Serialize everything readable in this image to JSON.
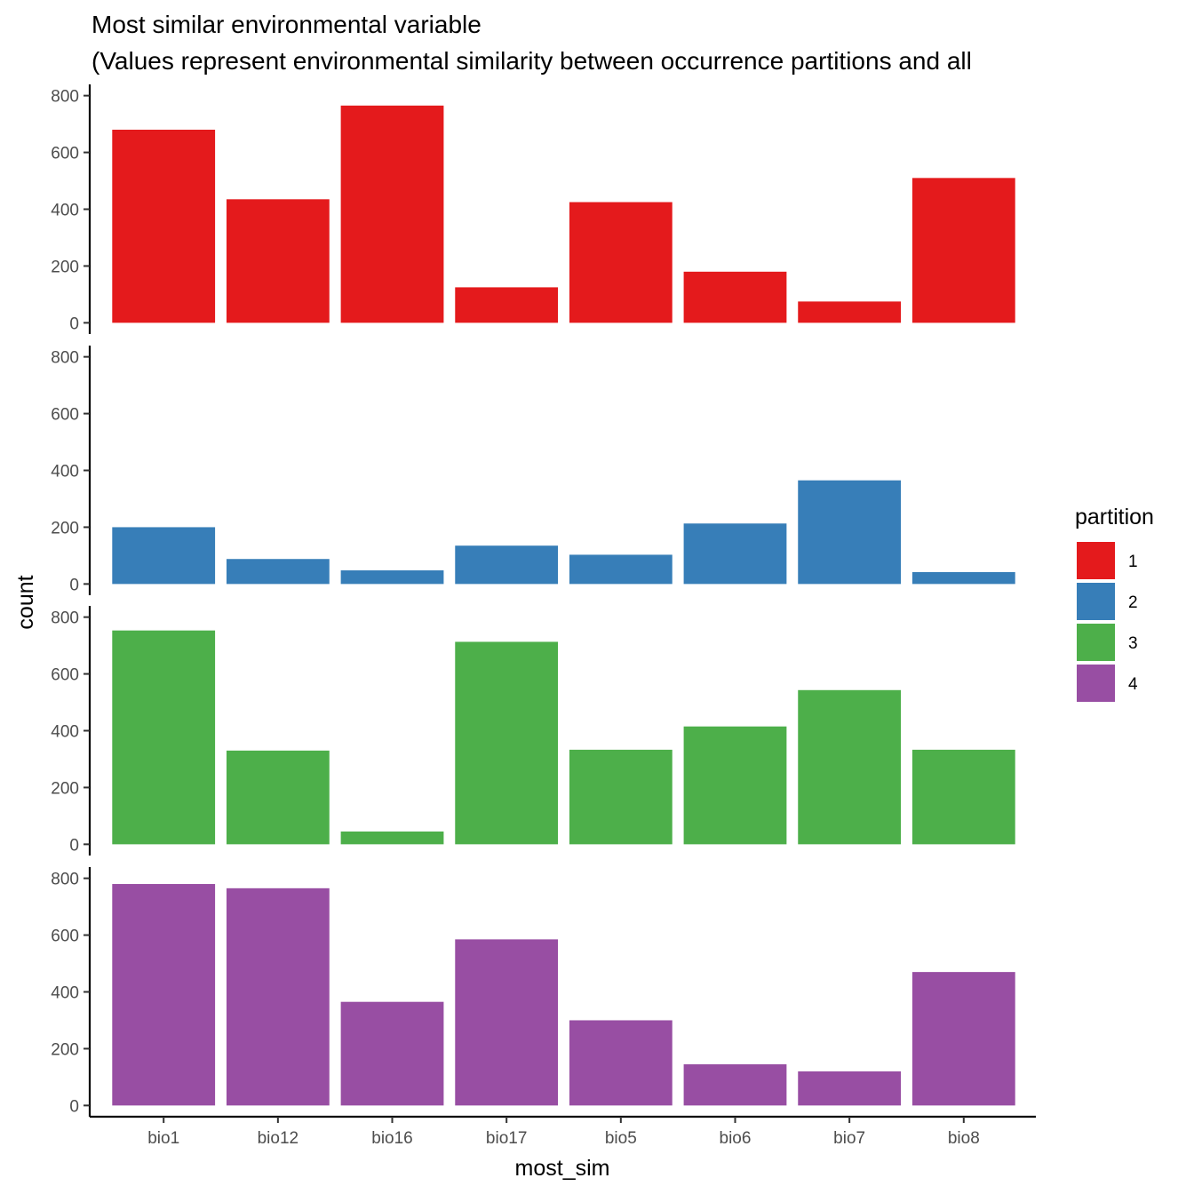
{
  "title_line1": "Most similar environmental variable",
  "title_line2": "(Values represent environmental similarity between occurrence partitions and all",
  "chart_data": {
    "type": "bar",
    "facet": "partition",
    "categories": [
      "bio1",
      "bio12",
      "bio16",
      "bio17",
      "bio5",
      "bio6",
      "bio7",
      "bio8"
    ],
    "xlabel": "most_sim",
    "ylabel": "count",
    "ylim": [
      0,
      800
    ],
    "yticks": [
      0,
      200,
      400,
      600,
      800
    ],
    "legend": {
      "title": "partition",
      "position": "right"
    },
    "grid": false,
    "series": [
      {
        "name": "1",
        "color": "#E41A1C",
        "values": [
          680,
          435,
          765,
          125,
          425,
          180,
          75,
          510
        ]
      },
      {
        "name": "2",
        "color": "#377EB8",
        "values": [
          200,
          88,
          48,
          135,
          103,
          213,
          365,
          42
        ]
      },
      {
        "name": "3",
        "color": "#4DAF4A",
        "values": [
          753,
          330,
          45,
          713,
          333,
          415,
          543,
          333
        ]
      },
      {
        "name": "4",
        "color": "#984EA3",
        "values": [
          780,
          765,
          365,
          585,
          300,
          145,
          120,
          470
        ]
      }
    ]
  }
}
